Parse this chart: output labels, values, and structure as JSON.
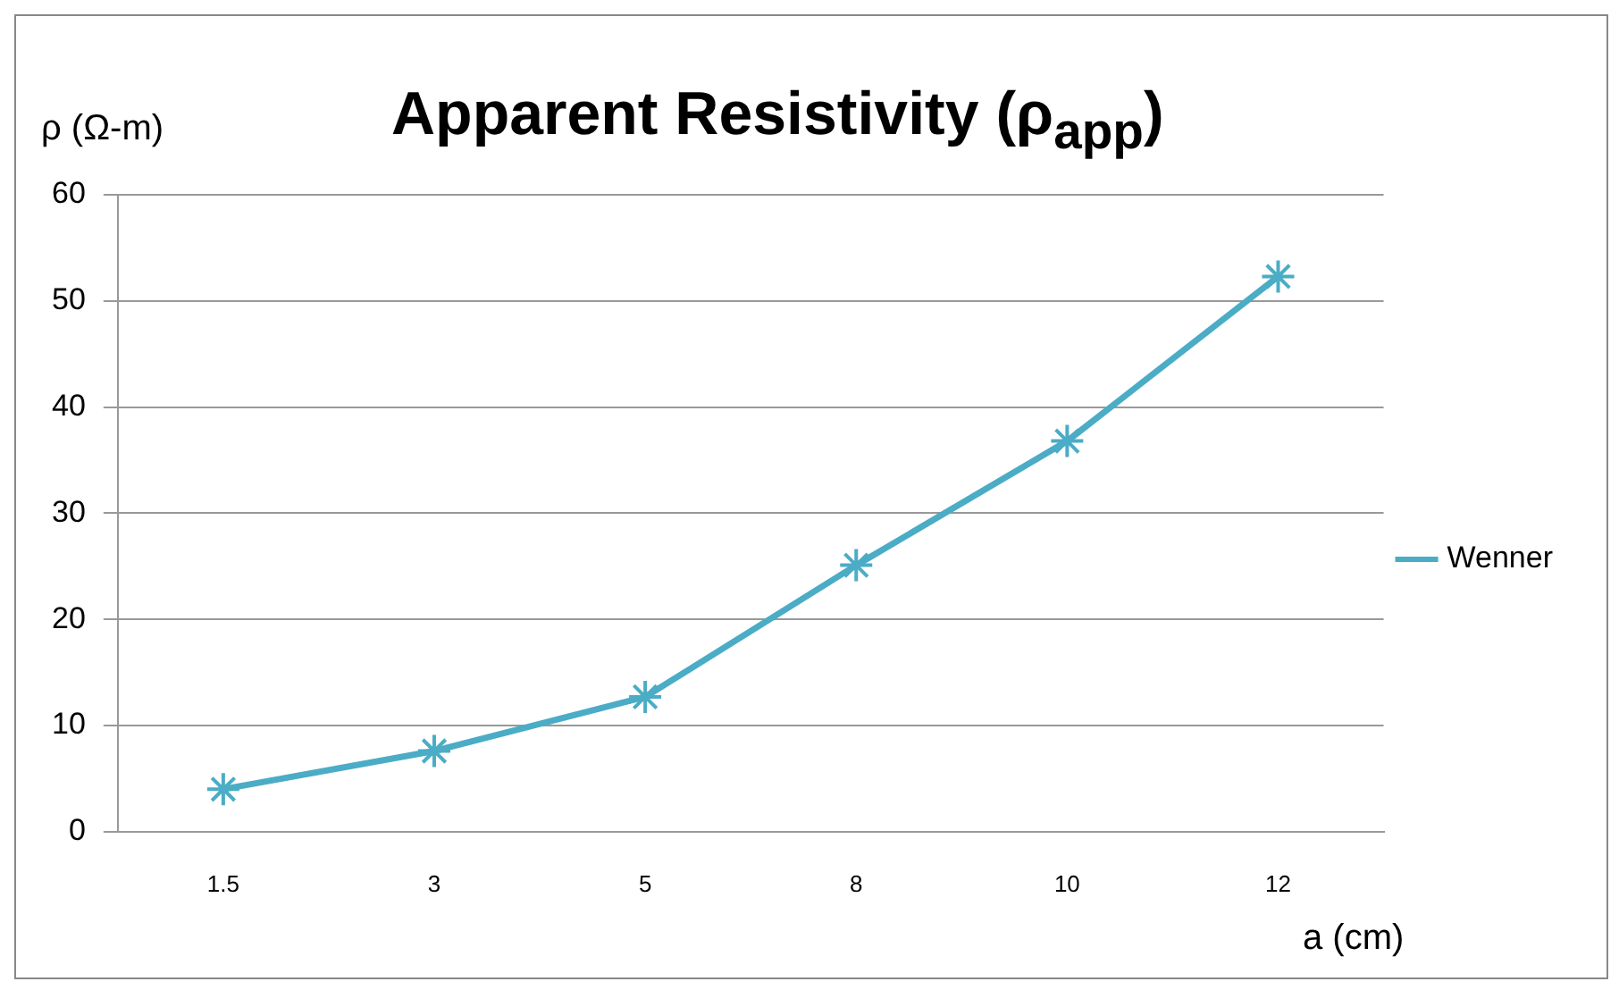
{
  "chart_data": {
    "type": "line",
    "title": "Apparent Resistivity (ρ$_{app}$)",
    "ylabel": "ρ (Ω-m)",
    "xlabel": "a (cm)",
    "categories": [
      "1.5",
      "3",
      "5",
      "8",
      "10",
      "12"
    ],
    "series": [
      {
        "name": "Wenner",
        "color": "#4bacc6",
        "values": [
          4.0,
          7.6,
          12.7,
          25.1,
          36.8,
          52.3
        ]
      }
    ],
    "ylim": [
      0,
      60
    ],
    "yticks": [
      0,
      10,
      20,
      30,
      40,
      50,
      60
    ],
    "grid": "y",
    "legend": "right",
    "marker": "cross",
    "line_style": "solid"
  }
}
